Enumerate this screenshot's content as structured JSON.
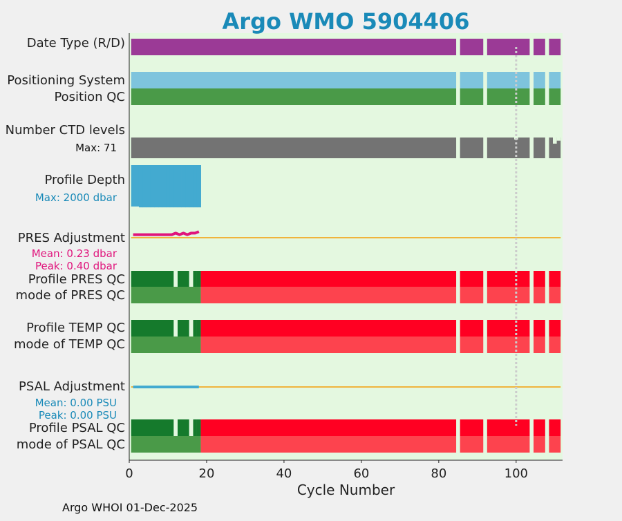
{
  "title": "Argo WMO 5904406",
  "footer": "Argo WHOI 01-Dec-2025",
  "colors": {
    "background": "#e4f8e0",
    "page": "#f0f0f0",
    "title": "#1a8ab8",
    "date_type_bar": "#9b3a96",
    "positioning_system_bar": "#7ec4dd",
    "position_qc_bar": "#4a9a48",
    "ctd_levels_bar": "#737373",
    "profile_depth_bar": "#43aad0",
    "pres_adjustment_line": "#e0147c",
    "psal_adjustment_line": "#43aad0",
    "zero_line": "#f0b43c",
    "qc_good_dark": "#157a2c",
    "qc_good": "#4a9a48",
    "qc_bad": "#ff0022",
    "qc_bad_light": "#fd434e",
    "reference_line": "#cccccc",
    "annotation_blue": "#1a8ab8",
    "annotation_pink": "#e0147c"
  },
  "rows": {
    "date_type": "Date Type (R/D)",
    "positioning_system": "Positioning System",
    "position_qc": "Position QC",
    "ctd_levels": "Number CTD levels",
    "ctd_max": "Max: 71",
    "profile_depth": "Profile Depth",
    "depth_max": "Max: 2000 dbar",
    "pres_adjustment": "PRES Adjustment",
    "pres_mean": "Mean: 0.23 dbar",
    "pres_peak": "Peak: 0.40 dbar",
    "profile_pres_qc": "Profile PRES QC",
    "mode_pres_qc": "mode of PRES QC",
    "profile_temp_qc": "Profile TEMP QC",
    "mode_temp_qc": "mode of TEMP QC",
    "psal_adjustment": "PSAL Adjustment",
    "psal_mean": "Mean: 0.00 PSU",
    "psal_peak": "Peak: 0.00 PSU",
    "profile_psal_qc": "Profile PSAL QC",
    "mode_psal_qc": "mode of PSAL QC"
  },
  "chart_data": {
    "type": "bar",
    "xlabel": "Cycle Number",
    "xlim": [
      0,
      112
    ],
    "xticks": [
      0,
      20,
      40,
      60,
      80,
      100
    ],
    "reference_cycle": 100,
    "segments": [
      [
        0.5,
        84.5
      ],
      [
        85.5,
        91.5
      ],
      [
        92.5,
        103.5
      ],
      [
        104.5,
        107.5
      ],
      [
        108.5,
        111.5
      ]
    ],
    "profile_qc_pattern": {
      "good_dark": [
        [
          0.5,
          11.5
        ],
        [
          12.5,
          15.5
        ],
        [
          16.5,
          17.5
        ],
        [
          17.5,
          18.5
        ]
      ],
      "good_light": [
        [
          11.5,
          12.5
        ],
        [
          15.5,
          16.5
        ]
      ],
      "bad_from": 18.5
    },
    "mode_qc_pattern": {
      "good_until": 18.5
    },
    "ctd_levels": {
      "max": 71,
      "dips": [
        {
          "cycle": 100,
          "value": 64
        },
        {
          "cycle": 110,
          "value": 50
        },
        {
          "cycle": 111,
          "value": 60
        }
      ]
    },
    "profile_depth": {
      "max": 2000,
      "cycles": [
        1,
        18
      ],
      "values": [
        1840,
        1840,
        1880,
        1880,
        1880,
        1880,
        1880,
        1880,
        1880,
        1880,
        1880,
        1880,
        1880,
        1880,
        1880,
        1880,
        1880,
        1880
      ]
    },
    "pres_adjustment": {
      "unit": "dbar",
      "mean": 0.23,
      "peak": 0.4,
      "cycles": [
        1,
        2,
        3,
        4,
        5,
        6,
        7,
        8,
        9,
        10,
        11,
        12,
        13,
        14,
        15,
        16,
        17,
        18
      ],
      "values": [
        0.2,
        0.2,
        0.2,
        0.2,
        0.2,
        0.2,
        0.2,
        0.2,
        0.2,
        0.2,
        0.2,
        0.3,
        0.2,
        0.3,
        0.2,
        0.3,
        0.3,
        0.4
      ]
    },
    "psal_adjustment": {
      "unit": "PSU",
      "mean": 0.0,
      "peak": 0.0,
      "cycles": [
        1,
        18
      ],
      "values": [
        0,
        0
      ]
    }
  }
}
